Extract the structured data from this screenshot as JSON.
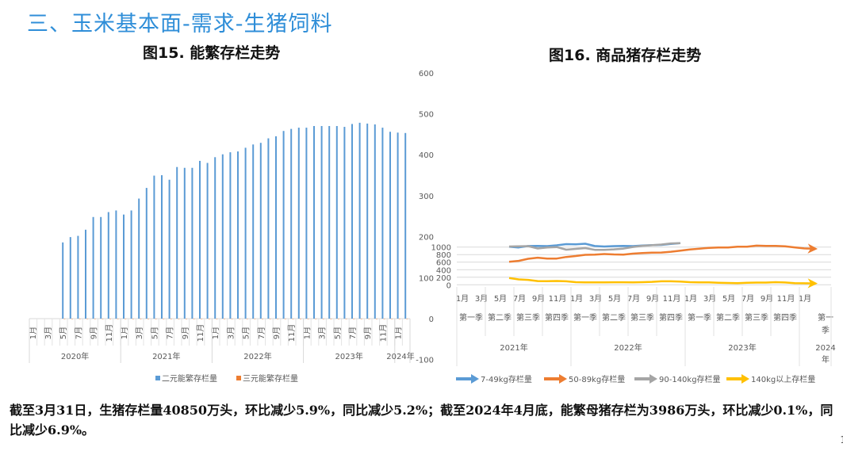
{
  "page": {
    "title": "三、玉米基本面-需求-生猪饲料",
    "summary": "截至3月31日，生猪存栏量40850万头，环比减少5.9%，同比减少5.2%；截至2024年4月底，能繁母猪存栏为3986万头，环比减少0.1%，同比减少6.9%。",
    "page_number": "1"
  },
  "chart_data": [
    {
      "type": "bar",
      "title": "图15. 能繁存栏走势",
      "years": [
        "2020年",
        "2021年",
        "2022年",
        "2023年",
        "2024年"
      ],
      "month_tick_labels": [
        "1月",
        "3月",
        "5月",
        "7月",
        "9月",
        "11月"
      ],
      "categories": [
        "2020年1月",
        "2020年2月",
        "2020年3月",
        "2020年4月",
        "2020年5月",
        "2020年6月",
        "2020年7月",
        "2020年8月",
        "2020年9月",
        "2020年10月",
        "2020年11月",
        "2020年12月",
        "2021年1月",
        "2021年2月",
        "2021年3月",
        "2021年4月",
        "2021年5月",
        "2021年6月",
        "2021年7月",
        "2021年8月",
        "2021年9月",
        "2021年10月",
        "2021年11月",
        "2021年12月",
        "2022年1月",
        "2022年2月",
        "2022年3月",
        "2022年4月",
        "2022年5月",
        "2022年6月",
        "2022年7月",
        "2022年8月",
        "2022年9月",
        "2022年10月",
        "2022年11月",
        "2022年12月",
        "2023年1月",
        "2023年2月",
        "2023年3月",
        "2023年4月",
        "2023年5月",
        "2023年6月",
        "2023年7月",
        "2023年8月",
        "2023年9月",
        "2023年10月",
        "2023年11月",
        "2023年12月",
        "2024年1月",
        "2024年2月"
      ],
      "series": [
        {
          "name": "二元能繁存栏量",
          "color": "#5b9bd5",
          "values": [
            null,
            null,
            null,
            null,
            186,
            199,
            202,
            217,
            248,
            248,
            260,
            264,
            254,
            264,
            293,
            319,
            349,
            350,
            339,
            370,
            368,
            368,
            385,
            380,
            394,
            401,
            406,
            408,
            417,
            425,
            429,
            440,
            445,
            458,
            463,
            466,
            466,
            470,
            470,
            470,
            470,
            468,
            475,
            478,
            476,
            474,
            466,
            456,
            454,
            453
          ]
        },
        {
          "name": "三元能繁存栏量",
          "color": "#ed7d31",
          "values": [
            null,
            null,
            null,
            null,
            0,
            0,
            0,
            0,
            0,
            0,
            0,
            0,
            0,
            0,
            0,
            0,
            0,
            0,
            0,
            0,
            0,
            0,
            0,
            0,
            0,
            0,
            0,
            0,
            0,
            0,
            0,
            0,
            0,
            0,
            0,
            0,
            0,
            0,
            0,
            0,
            0,
            0,
            0,
            0,
            0,
            0,
            0,
            0,
            0,
            0
          ]
        }
      ],
      "y_ticks": [
        600,
        500,
        400,
        300,
        200,
        100,
        0,
        -100
      ],
      "ylim": [
        -100,
        600
      ],
      "legend": "bottom"
    },
    {
      "type": "line",
      "title": "图16. 商品猪存栏走势",
      "years": [
        "2021年",
        "2022年",
        "2023年",
        "2024年"
      ],
      "quarters": [
        "第一季",
        "第二季",
        "第三季",
        "第四季",
        "第一季",
        "第二季",
        "第三季",
        "第四季",
        "第一季",
        "第二季",
        "第三季",
        "第四季",
        "第一季"
      ],
      "month_tick_labels": [
        "1月",
        "3月",
        "5月",
        "7月",
        "9月",
        "11月"
      ],
      "categories": [
        "2021年1月",
        "2021年2月",
        "2021年3月",
        "2021年4月",
        "2021年5月",
        "2021年6月",
        "2021年7月",
        "2021年8月",
        "2021年9月",
        "2021年10月",
        "2021年11月",
        "2021年12月",
        "2022年1月",
        "2022年2月",
        "2022年3月",
        "2022年4月",
        "2022年5月",
        "2022年6月",
        "2022年7月",
        "2022年8月",
        "2022年9月",
        "2022年10月",
        "2022年11月",
        "2022年12月",
        "2023年1月",
        "2023年2月",
        "2023年3月",
        "2023年4月",
        "2023年5月",
        "2023年6月",
        "2023年7月",
        "2023年8月",
        "2023年9月",
        "2023年10月",
        "2023年11月",
        "2023年12月",
        "2024年1月",
        "2024年2月"
      ],
      "series": [
        {
          "name": "7-49kg存栏量",
          "color": "#5b9bd5",
          "values": [
            null,
            null,
            null,
            null,
            null,
            1010,
            990,
            1028,
            1029,
            1025,
            1046,
            1077,
            1073,
            1088,
            1028,
            1015,
            1025,
            1029,
            1025,
            1041,
            1050,
            1057,
            1081,
            1104,
            null,
            null,
            null,
            null,
            null,
            null,
            null,
            null,
            null,
            null,
            null,
            null,
            null,
            null
          ]
        },
        {
          "name": "50-89kg存栏量",
          "color": "#ed7d31",
          "values": [
            null,
            null,
            null,
            null,
            null,
            612,
            634,
            689,
            718,
            695,
            696,
            737,
            763,
            795,
            801,
            816,
            804,
            800,
            826,
            843,
            853,
            856,
            875,
            905,
            938,
            957,
            978,
            990,
            987,
            1008,
            1010,
            1038,
            1032,
            1029,
            1020,
            992,
            964,
            955
          ]
        },
        {
          "name": "90-140kg存栏量",
          "color": "#a5a5a5",
          "values": [
            null,
            null,
            null,
            null,
            null,
            1015,
            1020,
            1025,
            962,
            987,
            1000,
            931,
            952,
            973,
            927,
            927,
            940,
            957,
            1003,
            1034,
            1048,
            1067,
            1097,
            1104,
            null,
            null,
            null,
            null,
            null,
            null,
            null,
            null,
            null,
            null,
            null,
            null,
            null,
            null
          ]
        },
        {
          "name": "140kg以上存栏量",
          "color": "#ffc000",
          "values": [
            null,
            null,
            null,
            null,
            null,
            179,
            143,
            130,
            98,
            95,
            101,
            92,
            69,
            64,
            66,
            62,
            67,
            67,
            63,
            69,
            77,
            92,
            92,
            85,
            70,
            66,
            62,
            55,
            48,
            43,
            52,
            59,
            59,
            70,
            60,
            45,
            39,
            36
          ]
        }
      ],
      "y_ticks": [
        1000,
        800,
        600,
        400,
        200,
        0
      ],
      "ylim": [
        0,
        1104
      ],
      "grid": true,
      "legend": "bottom"
    }
  ]
}
